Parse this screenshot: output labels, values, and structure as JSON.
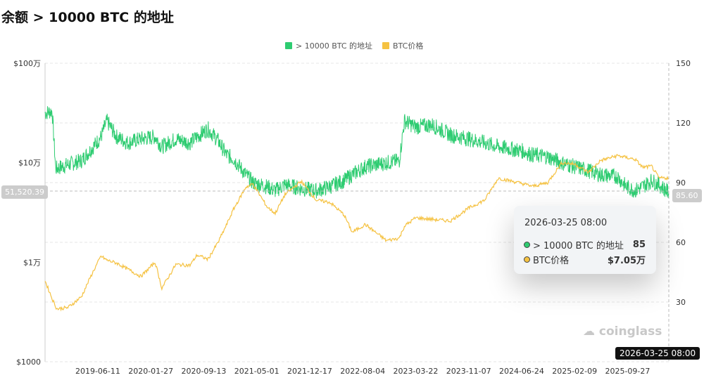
{
  "title": "余额 > 10000 BTC 的地址",
  "chart_data": {
    "type": "line",
    "legend_position": "top-center",
    "grid": true,
    "left_axis": {
      "scale": "log",
      "range": [
        1000,
        1000000
      ],
      "ticks": [
        {
          "v": 1000000,
          "label": "$100万"
        },
        {
          "v": 100000,
          "label": "$10万"
        },
        {
          "v": 10000,
          "label": "$1万"
        },
        {
          "v": 1000,
          "label": "$1000"
        }
      ]
    },
    "right_axis": {
      "scale": "linear",
      "range": [
        0,
        150
      ],
      "ticks": [
        150,
        120,
        90,
        60,
        30
      ]
    },
    "x_ticks": [
      "2019-06-11",
      "2020-01-27",
      "2020-09-13",
      "2021-05-01",
      "2021-12-17",
      "2022-08-04",
      "2023-03-22",
      "2023-11-07",
      "2024-06-24",
      "2025-02-09",
      "2025-09-27"
    ],
    "x_range": [
      "2018-10-25",
      "2026-03-25"
    ],
    "series": [
      {
        "name": "> 10000 BTC 的地址",
        "axis": "right",
        "color": "#2ecc71",
        "points": [
          [
            "2018-10-25",
            125
          ],
          [
            "2018-11-25",
            126
          ],
          [
            "2018-12-10",
            97
          ],
          [
            "2019-02-01",
            99
          ],
          [
            "2019-04-01",
            101
          ],
          [
            "2019-05-15",
            107
          ],
          [
            "2019-06-25",
            113
          ],
          [
            "2019-07-20",
            121
          ],
          [
            "2019-09-01",
            113
          ],
          [
            "2019-10-20",
            110
          ],
          [
            "2019-12-15",
            112
          ],
          [
            "2020-02-15",
            113
          ],
          [
            "2020-03-15",
            108
          ],
          [
            "2020-05-15",
            112
          ],
          [
            "2020-07-15",
            110
          ],
          [
            "2020-08-15",
            113
          ],
          [
            "2020-10-01",
            117
          ],
          [
            "2020-11-15",
            111
          ],
          [
            "2020-12-20",
            104
          ],
          [
            "2021-01-20",
            102
          ],
          [
            "2021-03-15",
            94
          ],
          [
            "2021-04-15",
            90
          ],
          [
            "2021-06-15",
            88
          ],
          [
            "2021-07-20",
            86
          ],
          [
            "2021-09-01",
            89
          ],
          [
            "2021-11-10",
            87
          ],
          [
            "2022-01-15",
            86
          ],
          [
            "2022-03-15",
            88
          ],
          [
            "2022-05-15",
            91
          ],
          [
            "2022-06-20",
            94
          ],
          [
            "2022-08-15",
            98
          ],
          [
            "2022-11-15",
            100
          ],
          [
            "2023-01-10",
            101
          ],
          [
            "2023-02-01",
            121
          ],
          [
            "2023-03-22",
            118
          ],
          [
            "2023-06-01",
            119
          ],
          [
            "2023-08-20",
            114
          ],
          [
            "2023-11-07",
            112
          ],
          [
            "2024-01-15",
            110
          ],
          [
            "2024-03-15",
            108
          ],
          [
            "2024-06-24",
            106
          ],
          [
            "2024-08-10",
            104
          ],
          [
            "2024-10-15",
            103
          ],
          [
            "2024-12-15",
            100
          ],
          [
            "2025-02-09",
            98
          ],
          [
            "2025-04-10",
            96
          ],
          [
            "2025-06-01",
            94
          ],
          [
            "2025-08-15",
            93
          ],
          [
            "2025-09-20",
            88
          ],
          [
            "2025-10-30",
            86
          ],
          [
            "2025-12-01",
            88
          ],
          [
            "2026-01-10",
            91
          ],
          [
            "2026-02-10",
            89
          ],
          [
            "2026-03-25",
            85
          ]
        ]
      },
      {
        "name": "BTC价格",
        "axis": "left",
        "color": "#f5c242",
        "points": [
          [
            "2018-10-25",
            6500
          ],
          [
            "2018-11-25",
            4300
          ],
          [
            "2018-12-15",
            3400
          ],
          [
            "2019-02-01",
            3500
          ],
          [
            "2019-04-01",
            4500
          ],
          [
            "2019-05-15",
            7500
          ],
          [
            "2019-06-25",
            11500
          ],
          [
            "2019-07-20",
            10500
          ],
          [
            "2019-09-01",
            9800
          ],
          [
            "2019-10-20",
            8500
          ],
          [
            "2019-12-15",
            7200
          ],
          [
            "2020-02-15",
            10000
          ],
          [
            "2020-03-15",
            5500
          ],
          [
            "2020-05-15",
            9500
          ],
          [
            "2020-07-15",
            9300
          ],
          [
            "2020-08-15",
            11800
          ],
          [
            "2020-10-01",
            10700
          ],
          [
            "2020-11-15",
            16000
          ],
          [
            "2020-12-20",
            23500
          ],
          [
            "2021-01-20",
            34000
          ],
          [
            "2021-03-15",
            57000
          ],
          [
            "2021-04-15",
            61000
          ],
          [
            "2021-06-15",
            36000
          ],
          [
            "2021-07-20",
            31000
          ],
          [
            "2021-09-01",
            48000
          ],
          [
            "2021-11-10",
            65000
          ],
          [
            "2022-01-15",
            42000
          ],
          [
            "2022-03-15",
            40000
          ],
          [
            "2022-05-15",
            30000
          ],
          [
            "2022-06-20",
            20000
          ],
          [
            "2022-08-15",
            24000
          ],
          [
            "2022-11-15",
            16500
          ],
          [
            "2023-01-10",
            17500
          ],
          [
            "2023-02-01",
            23000
          ],
          [
            "2023-03-22",
            28000
          ],
          [
            "2023-06-01",
            27000
          ],
          [
            "2023-08-20",
            26000
          ],
          [
            "2023-11-07",
            35000
          ],
          [
            "2024-01-15",
            42000
          ],
          [
            "2024-03-15",
            70000
          ],
          [
            "2024-06-24",
            62000
          ],
          [
            "2024-08-10",
            58000
          ],
          [
            "2024-10-15",
            63000
          ],
          [
            "2024-12-15",
            100000
          ],
          [
            "2025-02-09",
            97000
          ],
          [
            "2025-04-10",
            80000
          ],
          [
            "2025-06-01",
            105000
          ],
          [
            "2025-08-15",
            118000
          ],
          [
            "2025-09-20",
            113000
          ],
          [
            "2025-10-30",
            108000
          ],
          [
            "2025-12-01",
            90000
          ],
          [
            "2026-01-10",
            92000
          ],
          [
            "2026-02-10",
            70000
          ],
          [
            "2026-03-25",
            70500
          ]
        ]
      }
    ],
    "crosshair": {
      "x_label": "2026-03-25 08:00",
      "left_label": "51,520.39",
      "right_label": "85.60"
    }
  },
  "tooltip": {
    "time": "2026-03-25 08:00",
    "rows": [
      {
        "label": "> 10000 BTC 的地址",
        "value": "85",
        "color": "#2ecc71"
      },
      {
        "label": "BTC价格",
        "value": "$7.05万",
        "color": "#f5c242"
      }
    ]
  },
  "watermark": "coinglass"
}
